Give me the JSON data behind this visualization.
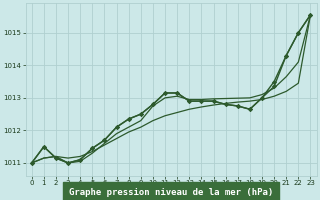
{
  "bg_color": "#cce8e8",
  "grid_color": "#b0d0d0",
  "line_color": "#2d5a2d",
  "marker_color": "#2d5a2d",
  "title": "Graphe pression niveau de la mer (hPa)",
  "xlim": [
    -0.5,
    23.5
  ],
  "ylim": [
    1010.6,
    1015.9
  ],
  "xticks": [
    0,
    1,
    2,
    3,
    4,
    5,
    6,
    7,
    8,
    9,
    10,
    11,
    12,
    13,
    14,
    15,
    16,
    17,
    18,
    19,
    20,
    21,
    22,
    23
  ],
  "yticks": [
    1011,
    1012,
    1013,
    1014,
    1015
  ],
  "series": [
    {
      "x": [
        0,
        1,
        2,
        3,
        4,
        5,
        6,
        7,
        8,
        9,
        10,
        11,
        12,
        13,
        14,
        15,
        16,
        17,
        18,
        19,
        20,
        21,
        22,
        23
      ],
      "y": [
        1011.0,
        1011.15,
        1011.2,
        1011.15,
        1011.2,
        1011.35,
        1011.55,
        1011.75,
        1011.95,
        1012.1,
        1012.3,
        1012.45,
        1012.55,
        1012.65,
        1012.72,
        1012.78,
        1012.83,
        1012.87,
        1012.9,
        1012.95,
        1013.05,
        1013.2,
        1013.45,
        1015.55
      ],
      "with_markers": false,
      "linewidth": 0.9
    },
    {
      "x": [
        0,
        1,
        2,
        3,
        4,
        5,
        6,
        7,
        8,
        9,
        10,
        11,
        12,
        13,
        14,
        15,
        16,
        17,
        18,
        19,
        20,
        21,
        22,
        23
      ],
      "y": [
        1011.0,
        1011.15,
        1011.2,
        1011.0,
        1011.05,
        1011.3,
        1011.6,
        1011.9,
        1012.1,
        1012.3,
        1012.75,
        1013.0,
        1013.05,
        1012.95,
        1012.95,
        1012.97,
        1012.98,
        1012.99,
        1013.0,
        1013.1,
        1013.3,
        1013.65,
        1014.1,
        1015.55
      ],
      "with_markers": false,
      "linewidth": 0.9
    },
    {
      "x": [
        0,
        1,
        2,
        3,
        4,
        5,
        6,
        7,
        8,
        9,
        10,
        11,
        12,
        13,
        14,
        15,
        16,
        17,
        18,
        19,
        20,
        21,
        22,
        23
      ],
      "y": [
        1011.0,
        1011.5,
        1011.15,
        1011.0,
        1011.1,
        1011.45,
        1011.7,
        1012.1,
        1012.35,
        1012.5,
        1012.8,
        1013.15,
        1013.15,
        1012.9,
        1012.9,
        1012.9,
        1012.8,
        1012.75,
        1012.65,
        1013.0,
        1013.5,
        1014.3,
        1015.0,
        1015.55
      ],
      "with_markers": true,
      "linewidth": 1.0
    },
    {
      "x": [
        0,
        1,
        2,
        3,
        4,
        5,
        6,
        7,
        8,
        9,
        10,
        11,
        12,
        13,
        14,
        15,
        16,
        17,
        18,
        19,
        20,
        21,
        22,
        23
      ],
      "y": [
        1011.0,
        1011.5,
        1011.15,
        1011.0,
        1011.1,
        1011.45,
        1011.7,
        1012.1,
        1012.35,
        1012.5,
        1012.8,
        1013.15,
        1013.15,
        1012.9,
        1012.9,
        1012.9,
        1012.8,
        1012.75,
        1012.65,
        1013.0,
        1013.35,
        1014.3,
        1015.0,
        1015.55
      ],
      "with_markers": true,
      "linewidth": 1.0
    }
  ],
  "title_fontsize": 6.5,
  "tick_fontsize": 5.0,
  "title_color": "#1a3a1a",
  "tick_color": "#1a3a1a",
  "title_bg": "#3a6e3a"
}
